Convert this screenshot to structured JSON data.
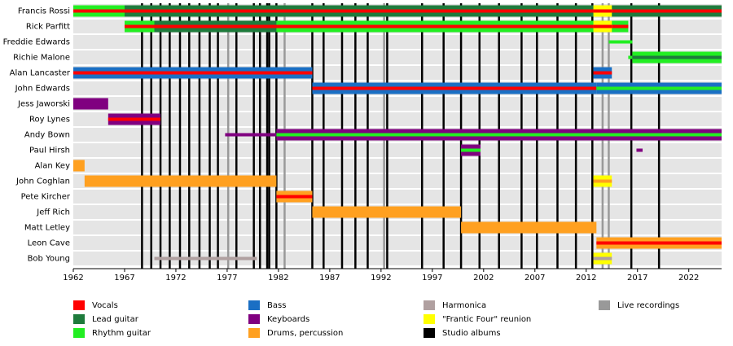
{
  "chart_data": {
    "type": "timeline",
    "xlim": [
      1962,
      2025.2
    ],
    "xticks": [
      1962,
      1967,
      1972,
      1977,
      1982,
      1987,
      1992,
      1997,
      2002,
      2007,
      2012,
      2017,
      2022
    ],
    "members": [
      {
        "name": "Francis Rossi",
        "spans": [
          {
            "start": 1962,
            "end": 2025.2,
            "color": "#1e7b3c",
            "stripe": "#ff0000"
          },
          {
            "start": 1962,
            "end": 1967,
            "color": "#22ee22",
            "stripe": "#ff0000"
          },
          {
            "start": 2012.7,
            "end": 2014.5,
            "color": "#ffff00",
            "stripe": "#ff0000"
          }
        ]
      },
      {
        "name": "Rick Parfitt",
        "spans": [
          {
            "start": 1967,
            "end": 2016.1,
            "color": "#22ee22",
            "stripe": "#ff0000"
          },
          {
            "start": 1969.9,
            "end": 1981.8,
            "color": "#1e7b3c",
            "stripe": "#ff0000"
          },
          {
            "start": 2012.7,
            "end": 2014.5,
            "color": "#ffff00",
            "stripe": "#ff0000"
          }
        ]
      },
      {
        "name": "Freddie Edwards",
        "spans": [
          {
            "start": 2014.2,
            "end": 2016.5,
            "color": "#22ee22",
            "thin": true
          }
        ]
      },
      {
        "name": "Richie Malone",
        "spans": [
          {
            "start": 2016.1,
            "end": 2016.5,
            "color": "#22ee22",
            "thin": true
          },
          {
            "start": 2016.5,
            "end": 2025.2,
            "color": "#22ee22",
            "stripe": "#1e7b3c"
          }
        ]
      },
      {
        "name": "Alan Lancaster",
        "spans": [
          {
            "start": 1962,
            "end": 1985.3,
            "color": "#1a6fc4",
            "stripe": "#ff0000"
          },
          {
            "start": 2012.7,
            "end": 2014.5,
            "color": "#1a6fc4",
            "stripe": "#ff0000"
          }
        ]
      },
      {
        "name": "John Edwards",
        "spans": [
          {
            "start": 1985.3,
            "end": 2013,
            "color": "#1a6fc4",
            "stripe": "#ff0000"
          },
          {
            "start": 2013,
            "end": 2025.2,
            "color": "#1a6fc4",
            "stripe": "#22ee22"
          }
        ]
      },
      {
        "name": "Jess Jaworski",
        "spans": [
          {
            "start": 1962,
            "end": 1965.4,
            "color": "#800080"
          }
        ]
      },
      {
        "name": "Roy Lynes",
        "spans": [
          {
            "start": 1965.4,
            "end": 1970.5,
            "color": "#800080",
            "stripe": "#ff0000"
          }
        ]
      },
      {
        "name": "Andy Bown",
        "spans": [
          {
            "start": 1976.8,
            "end": 1981.8,
            "color": "#800080",
            "thin": true
          },
          {
            "start": 1981.8,
            "end": 2025.2,
            "color": "#800080",
            "stripe": "#22ee22"
          }
        ]
      },
      {
        "name": "Paul Hirsh",
        "spans": [
          {
            "start": 1999.8,
            "end": 2001.7,
            "color": "#800080",
            "stripe": "#22ee22"
          },
          {
            "start": 2016.9,
            "end": 2017.5,
            "color": "#800080",
            "thin": true
          }
        ]
      },
      {
        "name": "Alan Key",
        "spans": [
          {
            "start": 1962,
            "end": 1963.1,
            "color": "#ffa020"
          }
        ]
      },
      {
        "name": "John Coghlan",
        "spans": [
          {
            "start": 1963.1,
            "end": 1981.8,
            "color": "#ffa020"
          },
          {
            "start": 2012.7,
            "end": 2014.5,
            "color": "#ffff00",
            "stripe": "#ffa020"
          }
        ]
      },
      {
        "name": "Pete Kircher",
        "spans": [
          {
            "start": 1981.8,
            "end": 1985.3,
            "color": "#ffa020",
            "stripe": "#ff0000"
          }
        ]
      },
      {
        "name": "Jeff Rich",
        "spans": [
          {
            "start": 1985.3,
            "end": 1999.8,
            "color": "#ffa020"
          }
        ]
      },
      {
        "name": "Matt Letley",
        "spans": [
          {
            "start": 1999.8,
            "end": 2013,
            "color": "#ffa020"
          }
        ]
      },
      {
        "name": "Leon Cave",
        "spans": [
          {
            "start": 2013,
            "end": 2025.2,
            "color": "#ffa020",
            "stripe": "#ff0000"
          }
        ]
      },
      {
        "name": "Bob Young",
        "spans": [
          {
            "start": 1969.9,
            "end": 1979.9,
            "color": "#b0a0a0",
            "thin": true
          },
          {
            "start": 2012.7,
            "end": 2014.5,
            "color": "#ffff00",
            "stripe": "#b0a0a0"
          }
        ]
      }
    ],
    "legend": [
      {
        "name": "Vocals",
        "color": "#ff0000"
      },
      {
        "name": "Lead guitar",
        "color": "#1e7b3c"
      },
      {
        "name": "Rhythm guitar",
        "color": "#22ee22"
      },
      {
        "name": "Bass",
        "color": "#1a6fc4"
      },
      {
        "name": "Keyboards",
        "color": "#800080"
      },
      {
        "name": "Drums, percussion",
        "color": "#ffa020"
      },
      {
        "name": "Harmonica",
        "color": "#b0a0a0"
      },
      {
        "name": "\"Frantic Four\" reunion",
        "color": "#ffff00"
      },
      {
        "name": "Studio albums",
        "color": "#000000",
        "years": [
          1968.7,
          1969.6,
          1970.5,
          1971.4,
          1972.4,
          1973.3,
          1974.3,
          1975.3,
          1976.1,
          1977.9,
          1979.6,
          1980.2,
          1980.9,
          1981.1,
          1981.8,
          1985.3,
          1986.4,
          1988.2,
          1989.5,
          1990.7,
          1992.6,
          1996,
          1998.1,
          1999.8,
          2001.6,
          2003.5,
          2005.7,
          2007.2,
          2009.2,
          2011,
          2012.6,
          2016.4,
          2019.1
        ]
      },
      {
        "name": "Live recordings",
        "color": "#999999",
        "years": [
          1977.1,
          1982.6,
          1992.3,
          2013.6,
          2014.2
        ]
      }
    ]
  }
}
